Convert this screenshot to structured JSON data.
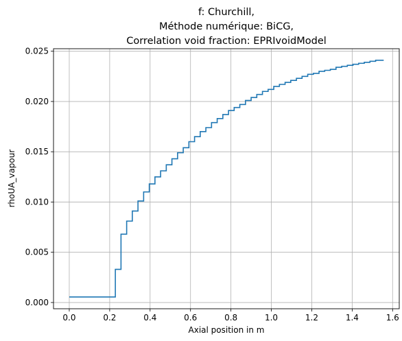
{
  "chart_data": {
    "type": "line",
    "drawstyle": "steps",
    "title_lines": [
      "f: Churchill,",
      "Méthode numérique: BiCG,",
      "Correlation void fraction: EPRIvoidModel"
    ],
    "xlabel": "Axial position in m",
    "ylabel": "rhoUA_vapour",
    "xlim": [
      -0.078,
      1.633
    ],
    "ylim": [
      -0.00062,
      0.02525
    ],
    "xticks": [
      0.0,
      0.2,
      0.4,
      0.6,
      0.8,
      1.0,
      1.2,
      1.4,
      1.6
    ],
    "xtick_labels": [
      "0.0",
      "0.2",
      "0.4",
      "0.6",
      "0.8",
      "1.0",
      "1.2",
      "1.4",
      "1.6"
    ],
    "yticks": [
      0.0,
      0.005,
      0.01,
      0.015,
      0.02,
      0.025
    ],
    "ytick_labels": [
      "0.000",
      "0.005",
      "0.010",
      "0.015",
      "0.020",
      "0.025"
    ],
    "grid": true,
    "legend": "none",
    "series": [
      {
        "color": "#1f77b4",
        "x": [
          0.0,
          0.228,
          0.256,
          0.284,
          0.312,
          0.34,
          0.368,
          0.396,
          0.424,
          0.452,
          0.48,
          0.508,
          0.536,
          0.564,
          0.592,
          0.62,
          0.648,
          0.676,
          0.704,
          0.732,
          0.76,
          0.788,
          0.816,
          0.844,
          0.872,
          0.9,
          0.928,
          0.956,
          0.984,
          1.012,
          1.04,
          1.068,
          1.096,
          1.124,
          1.152,
          1.18,
          1.208,
          1.236,
          1.264,
          1.292,
          1.32,
          1.348,
          1.376,
          1.404,
          1.432,
          1.46,
          1.488,
          1.516,
          1.556
        ],
        "y": [
          0.00055,
          0.0033,
          0.0068,
          0.0081,
          0.0091,
          0.0101,
          0.011,
          0.0118,
          0.0125,
          0.0131,
          0.0137,
          0.0143,
          0.0149,
          0.0154,
          0.016,
          0.0165,
          0.017,
          0.0174,
          0.0179,
          0.0183,
          0.0187,
          0.0191,
          0.0194,
          0.0197,
          0.0201,
          0.0204,
          0.0207,
          0.021,
          0.0212,
          0.0215,
          0.0217,
          0.0219,
          0.0221,
          0.0223,
          0.0225,
          0.0227,
          0.0228,
          0.023,
          0.0231,
          0.0232,
          0.0234,
          0.0235,
          0.0236,
          0.0237,
          0.0238,
          0.0239,
          0.024,
          0.0241,
          0.0241
        ]
      }
    ]
  }
}
